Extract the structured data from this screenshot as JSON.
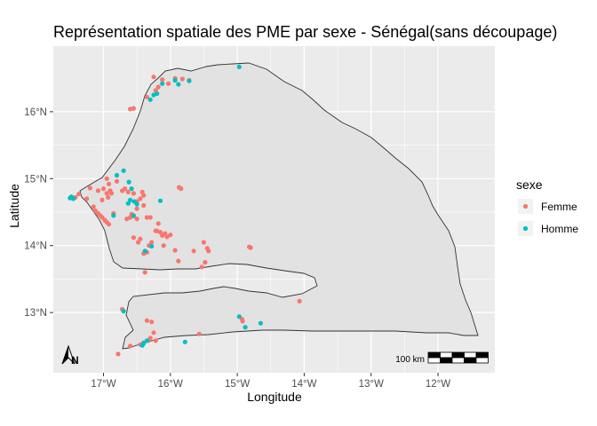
{
  "chart_data": {
    "type": "scatter",
    "title": "Représentation spatiale des PME par sexe - Sénégal(sans découpage)",
    "xlabel": "Longitude",
    "ylabel": "Latitude",
    "xlim": [
      -17.75,
      -11.15
    ],
    "ylim": [
      12.1,
      16.98
    ],
    "x_ticks": [
      -17,
      -16,
      -15,
      -14,
      -13,
      -12
    ],
    "x_tick_labels": [
      "17°W",
      "16°W",
      "15°W",
      "14°W",
      "13°W",
      "12°W"
    ],
    "y_ticks": [
      13,
      14,
      15,
      16
    ],
    "y_tick_labels": [
      "13°N",
      "14°N",
      "15°N",
      "16°N"
    ],
    "grid": true,
    "legend": {
      "title": "sexe",
      "position": "right"
    },
    "scale_bar_label": "100 km",
    "north_arrow_label": "N",
    "colors": {
      "panel": "#ebebeb",
      "grid": "#ffffff",
      "land": "#e2e2e2",
      "border": "#333333"
    },
    "series": [
      {
        "name": "Femme",
        "color": "#F8766D",
        "points": [
          [
            -16.25,
            16.52
          ],
          [
            -16.12,
            16.48
          ],
          [
            -15.93,
            16.5
          ],
          [
            -15.82,
            16.49
          ],
          [
            -15.72,
            16.47
          ],
          [
            -16.18,
            16.37
          ],
          [
            -16.03,
            16.42
          ],
          [
            -16.22,
            16.32
          ],
          [
            -16.55,
            16.05
          ],
          [
            -16.6,
            16.04
          ],
          [
            -16.35,
            16.22
          ],
          [
            -17.37,
            14.77
          ],
          [
            -17.42,
            14.72
          ],
          [
            -17.25,
            14.7
          ],
          [
            -17.2,
            14.86
          ],
          [
            -17.08,
            14.82
          ],
          [
            -17.0,
            14.85
          ],
          [
            -16.95,
            15.0
          ],
          [
            -16.92,
            14.92
          ],
          [
            -16.88,
            14.78
          ],
          [
            -16.8,
            14.96
          ],
          [
            -16.72,
            14.82
          ],
          [
            -16.68,
            14.85
          ],
          [
            -16.63,
            14.8
          ],
          [
            -16.55,
            14.78
          ],
          [
            -16.5,
            14.66
          ],
          [
            -16.45,
            14.7
          ],
          [
            -16.42,
            14.8
          ],
          [
            -16.4,
            14.6
          ],
          [
            -16.3,
            14.42
          ],
          [
            -16.5,
            14.55
          ],
          [
            -16.58,
            14.47
          ],
          [
            -16.65,
            14.4
          ],
          [
            -16.6,
            14.42
          ],
          [
            -16.55,
            14.44
          ],
          [
            -17.15,
            14.58
          ],
          [
            -17.12,
            14.52
          ],
          [
            -17.08,
            14.48
          ],
          [
            -17.05,
            14.45
          ],
          [
            -17.02,
            14.42
          ],
          [
            -16.98,
            14.38
          ],
          [
            -16.95,
            14.35
          ],
          [
            -16.92,
            14.32
          ],
          [
            -16.85,
            14.48
          ],
          [
            -17.02,
            14.68
          ],
          [
            -16.93,
            14.72
          ],
          [
            -16.95,
            14.78
          ],
          [
            -16.9,
            14.82
          ],
          [
            -15.87,
            14.87
          ],
          [
            -15.84,
            14.85
          ],
          [
            -16.4,
            14.75
          ],
          [
            -16.35,
            14.42
          ],
          [
            -16.5,
            14.4
          ],
          [
            -16.18,
            14.33
          ],
          [
            -16.12,
            14.15
          ],
          [
            -16.05,
            14.13
          ],
          [
            -16.0,
            14.16
          ],
          [
            -16.08,
            14.18
          ],
          [
            -16.15,
            14.2
          ],
          [
            -16.2,
            14.22
          ],
          [
            -16.28,
            14.05
          ],
          [
            -16.32,
            14.0
          ],
          [
            -16.35,
            13.9
          ],
          [
            -16.4,
            13.88
          ],
          [
            -16.45,
            14.1
          ],
          [
            -16.55,
            14.12
          ],
          [
            -16.48,
            14.05
          ],
          [
            -16.22,
            14.22
          ],
          [
            -16.1,
            14.0
          ],
          [
            -15.93,
            13.93
          ],
          [
            -15.88,
            13.77
          ],
          [
            -15.65,
            13.92
          ],
          [
            -15.5,
            14.05
          ],
          [
            -15.45,
            13.96
          ],
          [
            -15.43,
            13.92
          ],
          [
            -15.48,
            13.75
          ],
          [
            -15.53,
            13.68
          ],
          [
            -14.82,
            13.98
          ],
          [
            -14.8,
            13.97
          ],
          [
            -16.38,
            13.6
          ],
          [
            -14.07,
            13.17
          ],
          [
            -16.35,
            12.88
          ],
          [
            -16.28,
            12.86
          ],
          [
            -16.25,
            12.7
          ],
          [
            -16.3,
            12.62
          ],
          [
            -16.33,
            12.58
          ],
          [
            -16.4,
            12.55
          ],
          [
            -16.45,
            12.52
          ],
          [
            -16.22,
            12.58
          ],
          [
            -15.57,
            12.68
          ],
          [
            -16.6,
            12.5
          ],
          [
            -16.78,
            12.38
          ],
          [
            -16.72,
            13.05
          ],
          [
            -14.93,
            12.9
          ],
          [
            -14.92,
            12.87
          ]
        ]
      },
      {
        "name": "Homme",
        "color": "#00BFC4",
        "points": [
          [
            -14.97,
            16.67
          ],
          [
            -15.93,
            16.47
          ],
          [
            -15.88,
            16.41
          ],
          [
            -15.72,
            16.46
          ],
          [
            -16.12,
            16.42
          ],
          [
            -16.3,
            16.18
          ],
          [
            -16.2,
            16.27
          ],
          [
            -16.25,
            16.25
          ],
          [
            -17.48,
            14.73
          ],
          [
            -17.45,
            14.7
          ],
          [
            -17.5,
            14.71
          ],
          [
            -16.8,
            15.05
          ],
          [
            -16.7,
            15.12
          ],
          [
            -16.62,
            14.95
          ],
          [
            -16.58,
            14.85
          ],
          [
            -16.6,
            14.68
          ],
          [
            -16.63,
            14.63
          ],
          [
            -16.54,
            14.66
          ],
          [
            -16.5,
            14.62
          ],
          [
            -16.15,
            14.67
          ],
          [
            -16.55,
            14.45
          ],
          [
            -16.85,
            14.45
          ],
          [
            -16.28,
            13.99
          ],
          [
            -16.38,
            13.92
          ],
          [
            -14.97,
            12.94
          ],
          [
            -14.88,
            12.78
          ],
          [
            -14.65,
            12.84
          ],
          [
            -15.78,
            12.56
          ],
          [
            -16.4,
            12.54
          ],
          [
            -16.35,
            12.58
          ],
          [
            -16.42,
            12.51
          ],
          [
            -16.7,
            13.02
          ]
        ]
      }
    ]
  }
}
